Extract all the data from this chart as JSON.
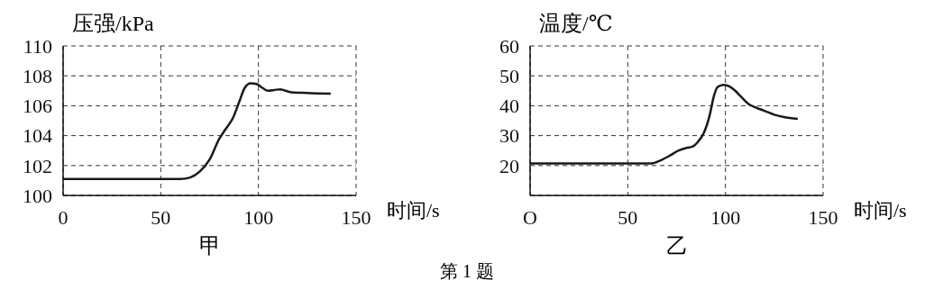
{
  "chart_data": [
    {
      "type": "line",
      "title": "甲",
      "ylabel": "压强/kPa",
      "xlabel": "时间/s",
      "color": "#1a1a1a",
      "grid": true,
      "xlim": [
        0,
        150
      ],
      "xticks": [
        0,
        50,
        100,
        150
      ],
      "ylim": [
        100,
        110
      ],
      "yticks": [
        100,
        102,
        104,
        106,
        108,
        110
      ],
      "x": [
        0,
        20,
        40,
        60,
        65,
        70,
        75,
        80,
        83,
        87,
        90,
        93,
        96,
        99,
        102,
        105,
        108,
        111,
        114,
        117,
        125,
        137
      ],
      "values": [
        101.1,
        101.1,
        101.1,
        101.1,
        101.2,
        101.6,
        102.4,
        103.8,
        104.4,
        105.2,
        106.2,
        107.2,
        107.5,
        107.45,
        107.2,
        107.0,
        107.05,
        107.1,
        107.0,
        106.9,
        106.85,
        106.8
      ],
      "annotations": [
        "第 1 题"
      ]
    },
    {
      "type": "line",
      "title": "乙",
      "ylabel": "温度/℃",
      "xlabel": "时间/s",
      "color": "#1a1a1a",
      "grid": true,
      "xlim": [
        0,
        150
      ],
      "xticks": [
        {
          "value": 0,
          "label": "O"
        },
        50,
        100,
        150
      ],
      "ylim": [
        10,
        60
      ],
      "yticks": [
        20,
        30,
        40,
        50,
        60
      ],
      "x": [
        0,
        20,
        40,
        62,
        67,
        72,
        76,
        80,
        83,
        86,
        89,
        92,
        94,
        96,
        99,
        102,
        105,
        108,
        112,
        116,
        120,
        125,
        130,
        137
      ],
      "values": [
        20.7,
        20.7,
        20.7,
        20.7,
        21.8,
        23.5,
        25.0,
        25.9,
        26.3,
        28,
        31,
        37,
        43,
        46.3,
        47,
        46.5,
        45,
        43,
        40.5,
        39.3,
        38.3,
        37,
        36.2,
        35.6
      ]
    }
  ]
}
